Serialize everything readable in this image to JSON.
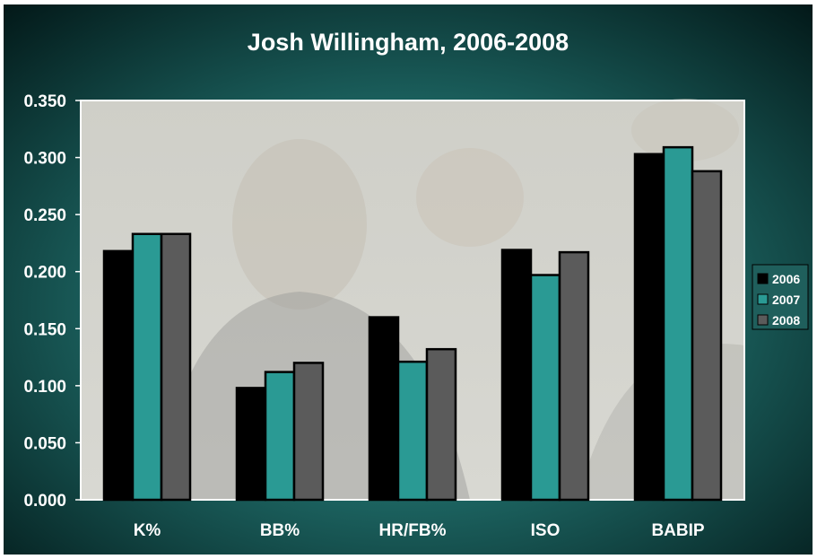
{
  "chart_data": {
    "type": "bar",
    "title": "Josh Willingham, 2006-2008",
    "categories": [
      "K%",
      "BB%",
      "HR/FB%",
      "ISO",
      "BABIP"
    ],
    "series": [
      {
        "name": "2006",
        "values": [
          0.218,
          0.098,
          0.16,
          0.219,
          0.303
        ]
      },
      {
        "name": "2007",
        "values": [
          0.233,
          0.112,
          0.121,
          0.197,
          0.309
        ]
      },
      {
        "name": "2008",
        "values": [
          0.233,
          0.12,
          0.132,
          0.217,
          0.288
        ]
      }
    ],
    "ylim": [
      0,
      0.35
    ],
    "yticks": [
      "0.000",
      "0.050",
      "0.100",
      "0.150",
      "0.200",
      "0.250",
      "0.300",
      "0.350"
    ],
    "grid": false,
    "legend_position": "right",
    "colors": {
      "2006": "#000000",
      "2007": "#2a9a94",
      "2008": "#5b5b5b",
      "background_dark": "#011414",
      "background_teal": "#1f6d6a"
    }
  }
}
